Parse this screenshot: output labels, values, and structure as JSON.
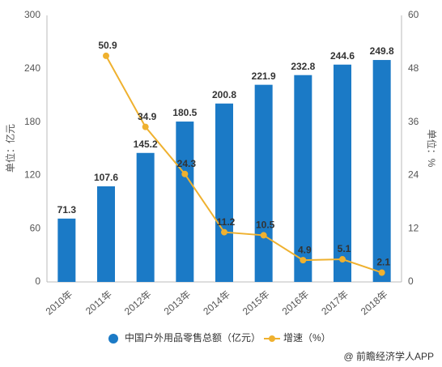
{
  "chart_data": {
    "type": "bar",
    "categories": [
      "2010年",
      "2011年",
      "2012年",
      "2013年",
      "2014年",
      "2015年",
      "2016年",
      "2017年",
      "2018年"
    ],
    "series": [
      {
        "name": "中国户外用品零售总额（亿元）",
        "type": "bar",
        "color": "#1b7ac6",
        "values": [
          71.3,
          107.6,
          145.2,
          180.5,
          200.8,
          221.9,
          232.8,
          244.6,
          249.8
        ]
      },
      {
        "name": "增速（%）",
        "type": "line",
        "axis": "y2",
        "color": "#efb12f",
        "values": [
          null,
          50.9,
          34.9,
          24.3,
          11.2,
          10.5,
          4.9,
          5.1,
          2.1
        ]
      }
    ],
    "ylabel": "单位：亿元",
    "y2label": "单位：%",
    "ylim": [
      0,
      300
    ],
    "yticks": [
      0,
      60,
      120,
      180,
      240,
      300
    ],
    "y2lim": [
      0,
      60
    ],
    "y2ticks": [
      0,
      12,
      24,
      36,
      48,
      60
    ],
    "grid": false,
    "legend": "bottom",
    "source": "@ 前瞻经济学人APP"
  }
}
